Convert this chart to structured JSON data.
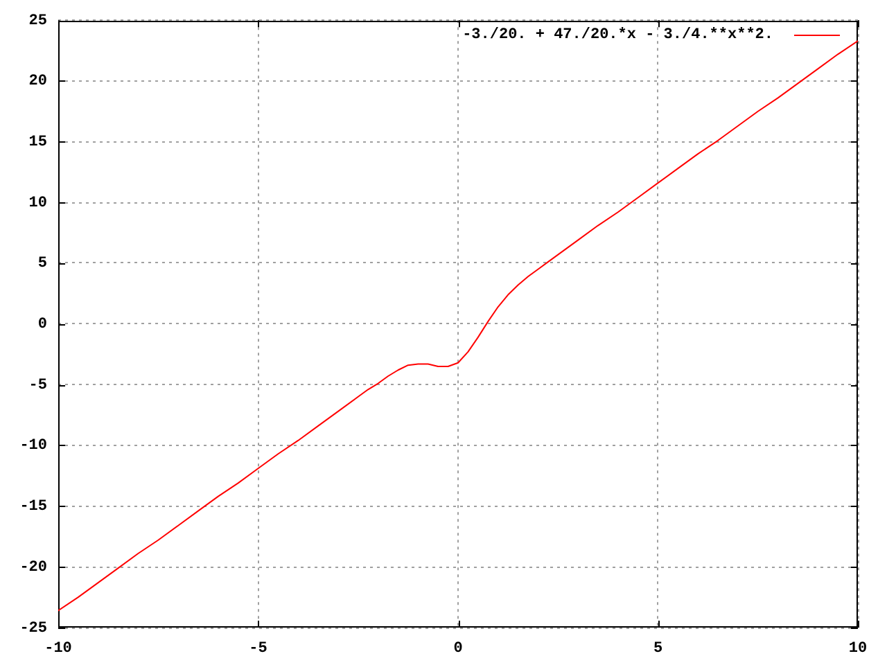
{
  "chart_data": {
    "type": "line",
    "x": [
      -10,
      -9.5,
      -9,
      -8.5,
      -8,
      -7.5,
      -7,
      -6.5,
      -6,
      -5.5,
      -5,
      -4.5,
      -4,
      -3.5,
      -3,
      -2.5,
      -2.25,
      -2,
      -1.75,
      -1.5,
      -1.25,
      -1,
      -0.75,
      -0.5,
      -0.25,
      0,
      0.25,
      0.5,
      0.75,
      1,
      1.25,
      1.5,
      1.75,
      2,
      2.25,
      2.5,
      3,
      3.5,
      4,
      4.5,
      5,
      5.5,
      6,
      6.5,
      7,
      7.5,
      8,
      8.5,
      9,
      9.5,
      10
    ],
    "series": [
      {
        "name": "-3./20. + 47./20.*x - 3./4.**x**2.",
        "color": "#ff0000",
        "values": [
          -23.6,
          -22.5,
          -21.3,
          -20.1,
          -18.9,
          -17.8,
          -16.6,
          -15.4,
          -14.2,
          -13.1,
          -11.9,
          -10.7,
          -9.6,
          -8.4,
          -7.2,
          -6.0,
          -5.4,
          -4.9,
          -4.3,
          -3.8,
          -3.4,
          -3.3,
          -3.3,
          -3.5,
          -3.5,
          -3.2,
          -2.3,
          -1.1,
          0.2,
          1.4,
          2.4,
          3.2,
          3.9,
          4.5,
          5.1,
          5.7,
          6.9,
          8.1,
          9.2,
          10.4,
          11.6,
          12.8,
          14.0,
          15.1,
          16.3,
          17.5,
          18.6,
          19.8,
          21.0,
          22.2,
          23.3
        ]
      }
    ],
    "xlim": [
      -10,
      10
    ],
    "xticks": [
      -10,
      -5,
      0,
      5,
      10
    ],
    "ylim": [
      -25,
      25
    ],
    "yticks": [
      -25,
      -20,
      -15,
      -10,
      -5,
      0,
      5,
      10,
      15,
      20,
      25
    ],
    "grid": true,
    "legend": "top right",
    "marker": "none",
    "line_style": "solid"
  }
}
